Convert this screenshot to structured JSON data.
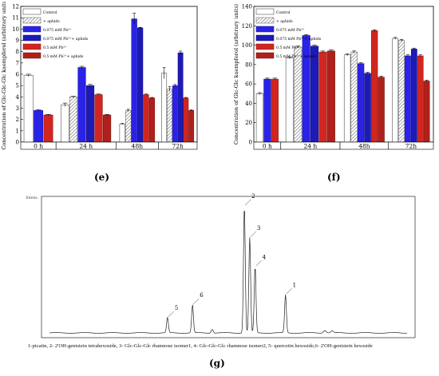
{
  "labels": {
    "e": "(e)",
    "f": "(f)",
    "g": "(g)"
  },
  "chart_data": [
    {
      "type": "bar",
      "panel": "(e)",
      "ylabel": "Concentration of Glc-Glc-Glc kaempferol (arbitrary units)",
      "ylim": [
        0,
        12
      ],
      "yticks": [
        0,
        1,
        2,
        3,
        4,
        5,
        6,
        7,
        8,
        9,
        10,
        11,
        12
      ],
      "categories": [
        "0 h",
        "24 h",
        "48h",
        "72h"
      ],
      "legend_position": "top-left",
      "series": [
        {
          "name": "Control",
          "values": [
            5.9,
            3.3,
            1.6,
            6.1
          ],
          "errors": [
            0.1,
            0.15,
            0.05,
            0.5
          ]
        },
        {
          "name": "+ aphids",
          "values": [
            null,
            4.0,
            2.8,
            4.7
          ],
          "errors": [
            null,
            0.05,
            0.1,
            0.2
          ]
        },
        {
          "name": "0.075 mM Pb²⁺",
          "values": [
            2.8,
            6.6,
            10.9,
            5.0
          ],
          "errors": [
            0.08,
            0.1,
            0.5,
            0.1
          ]
        },
        {
          "name": "0.075 mM Pb²⁺+ aphids",
          "values": [
            null,
            5.0,
            10.1,
            7.9
          ],
          "errors": [
            null,
            0.1,
            0.05,
            0.15
          ]
        },
        {
          "name": "0.5 mM Pb²⁺",
          "values": [
            2.4,
            4.2,
            4.2,
            3.9
          ],
          "errors": [
            0.05,
            0.05,
            0.05,
            0.05
          ]
        },
        {
          "name": "0.5 mM Pb²⁺+ aphids",
          "values": [
            null,
            2.4,
            3.9,
            2.8
          ],
          "errors": [
            null,
            0.05,
            0.05,
            0.05
          ]
        }
      ]
    },
    {
      "type": "bar",
      "panel": "(f)",
      "ylabel": "Concentration of Glc-Glc kaempferol (arbitrary units)",
      "ylim": [
        0,
        140
      ],
      "yticks": [
        0,
        20,
        40,
        60,
        80,
        100,
        120,
        140
      ],
      "categories": [
        "0 h",
        "24 h",
        "48h",
        "72h"
      ],
      "legend_position": "top-left",
      "series": [
        {
          "name": "Control",
          "values": [
            50,
            87,
            90,
            107
          ],
          "errors": [
            1,
            1,
            1,
            1
          ]
        },
        {
          "name": "+ aphids",
          "values": [
            null,
            98,
            93,
            105
          ],
          "errors": [
            null,
            1,
            1,
            1
          ]
        },
        {
          "name": "0.075 mM Pb²⁺",
          "values": [
            65,
            110,
            81,
            89
          ],
          "errors": [
            1,
            1,
            1,
            1
          ]
        },
        {
          "name": "0.075 mM Pb²⁺+ aphids",
          "values": [
            null,
            99,
            71,
            96
          ],
          "errors": [
            null,
            1,
            1,
            1
          ]
        },
        {
          "name": "0.5 mM Pb²⁺",
          "values": [
            65,
            93,
            115,
            89
          ],
          "errors": [
            1,
            1,
            1,
            1
          ]
        },
        {
          "name": "0.5 mM Pb²⁺+ aphids",
          "values": [
            null,
            94,
            67,
            63
          ],
          "errors": [
            null,
            1,
            1,
            1
          ]
        }
      ]
    },
    {
      "type": "line",
      "panel": "(g)",
      "ylabel": "Intens.",
      "peaks": [
        {
          "label": "5",
          "x": 0.33,
          "height": 0.12
        },
        {
          "label": "6",
          "x": 0.4,
          "height": 0.22
        },
        {
          "label": "2",
          "x": 0.545,
          "height": 1.0
        },
        {
          "label": "3",
          "x": 0.56,
          "height": 0.75
        },
        {
          "label": "4",
          "x": 0.575,
          "height": 0.52
        },
        {
          "label": "1",
          "x": 0.66,
          "height": 0.3
        }
      ],
      "caption": "1-picatin, 2- 2'OH-genistein tetrahexoside, 3- Glc-Glc-Glc rhamnose isomer1, 4- Glc-Glc-Glc rhamnose isomer2, 5- quercetin hexoside,6- 2'OH-genistein hexoside"
    }
  ]
}
